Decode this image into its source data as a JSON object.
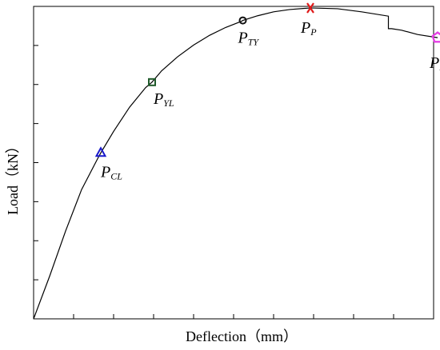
{
  "chart_data": {
    "type": "line",
    "xlabel": "Deflection（mm）",
    "ylabel": "Load（kN）",
    "xlim": [
      0,
      10
    ],
    "ylim": [
      0,
      8
    ],
    "x_ticks_count": 10,
    "y_ticks_count": 8,
    "show_tick_labels": false,
    "grid": false,
    "series": [
      {
        "values_x": [
          0,
          0.4,
          0.8,
          1.2,
          1.6,
          1.68,
          2.0,
          2.4,
          2.8,
          2.96,
          3.2,
          3.6,
          4.0,
          4.4,
          4.8,
          5.2,
          5.23,
          5.6,
          6.0,
          6.4,
          6.92,
          7.6,
          8.2,
          8.87,
          8.87,
          8.95,
          9.2,
          9.6,
          10.1
        ],
        "values_y": [
          0,
          1.09,
          2.25,
          3.31,
          4.1,
          4.25,
          4.8,
          5.42,
          5.92,
          6.06,
          6.35,
          6.71,
          7.01,
          7.26,
          7.46,
          7.62,
          7.64,
          7.76,
          7.86,
          7.92,
          7.96,
          7.94,
          7.86,
          7.75,
          7.43,
          7.43,
          7.39,
          7.28,
          7.2
        ]
      }
    ],
    "key_points": [
      {
        "id": "PCL",
        "main": "P",
        "sub": "CL",
        "x": 1.68,
        "y": 4.25,
        "marker": "triangle",
        "color": "#1a1acc"
      },
      {
        "id": "PYL",
        "main": "P",
        "sub": "YL",
        "x": 2.96,
        "y": 6.06,
        "marker": "square",
        "color": "#1f5a2a"
      },
      {
        "id": "PTY",
        "main": "P",
        "sub": "TY",
        "x": 5.23,
        "y": 7.64,
        "marker": "circle",
        "color": "#111111"
      },
      {
        "id": "PP",
        "main": "P",
        "sub": "P",
        "x": 6.92,
        "y": 7.96,
        "marker": "x",
        "color": "#e01a1a"
      },
      {
        "id": "PD",
        "main": "P",
        "sub": "D",
        "x": 10.1,
        "y": 7.2,
        "marker": "pentagon",
        "color": "#e43fe4"
      }
    ]
  }
}
